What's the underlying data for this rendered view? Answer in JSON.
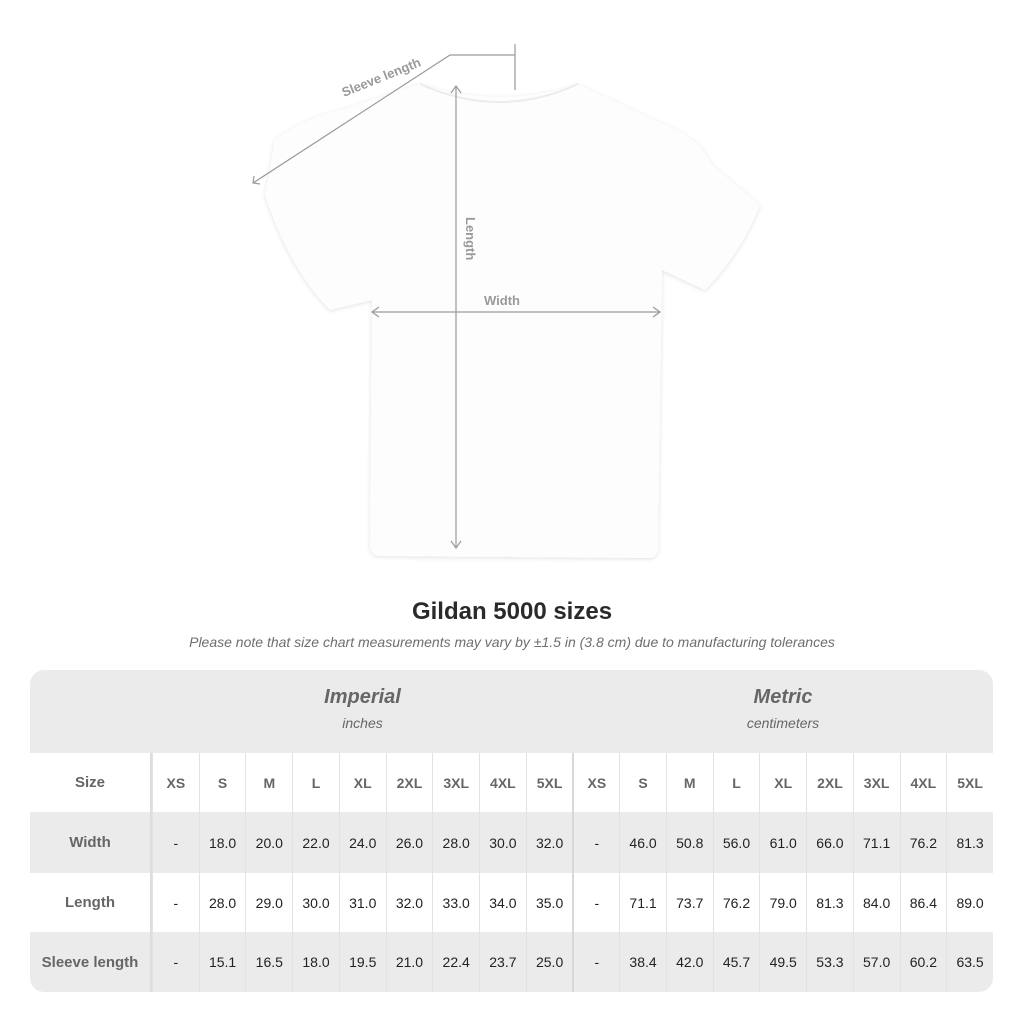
{
  "diagram": {
    "sleeve_label": "Sleeve length",
    "length_label": "Length",
    "width_label": "Width"
  },
  "title": "Gildan 5000 sizes",
  "note": "Please note that size chart measurements may vary by ±1.5 in (3.8 cm) due to manufacturing tolerances",
  "imperial": {
    "name": "Imperial",
    "unit": "inches"
  },
  "metric": {
    "name": "Metric",
    "unit": "centimeters"
  },
  "table": {
    "size_label": "Size",
    "sizes": [
      "XS",
      "S",
      "M",
      "L",
      "XL",
      "2XL",
      "3XL",
      "4XL",
      "5XL",
      "XS",
      "S",
      "M",
      "L",
      "XL",
      "2XL",
      "3XL",
      "4XL",
      "5XL"
    ],
    "rows": [
      {
        "label": "Width",
        "values": [
          "-",
          "18.0",
          "20.0",
          "22.0",
          "24.0",
          "26.0",
          "28.0",
          "30.0",
          "32.0",
          "-",
          "46.0",
          "50.8",
          "56.0",
          "61.0",
          "66.0",
          "71.1",
          "76.2",
          "81.3"
        ]
      },
      {
        "label": "Length",
        "values": [
          "-",
          "28.0",
          "29.0",
          "30.0",
          "31.0",
          "32.0",
          "33.0",
          "34.0",
          "35.0",
          "-",
          "71.1",
          "73.7",
          "76.2",
          "79.0",
          "81.3",
          "84.0",
          "86.4",
          "89.0"
        ]
      },
      {
        "label": "Sleeve length",
        "values": [
          "-",
          "15.1",
          "16.5",
          "18.0",
          "19.5",
          "21.0",
          "22.4",
          "23.7",
          "25.0",
          "-",
          "38.4",
          "42.0",
          "45.7",
          "49.5",
          "53.3",
          "57.0",
          "60.2",
          "63.5"
        ]
      }
    ]
  },
  "colors": {
    "panel": "#ebebeb",
    "measure_line": "#9a9a9a"
  }
}
